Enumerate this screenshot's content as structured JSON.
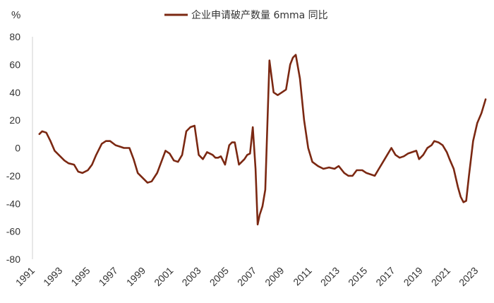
{
  "chart_data": {
    "type": "line",
    "y_unit": "%",
    "xlim": [
      1991,
      2023.9
    ],
    "ylim": [
      -80,
      80
    ],
    "y_ticks": [
      80,
      60,
      40,
      20,
      0,
      -20,
      -40,
      -60,
      -80
    ],
    "x_ticks": [
      "1991",
      "1993",
      "1995",
      "1997",
      "1999",
      "2001",
      "2003",
      "2005",
      "2007",
      "2009",
      "2011",
      "2013",
      "2015",
      "2017",
      "2019",
      "2021",
      "2023"
    ],
    "legend_position": "top",
    "grid": false,
    "series": [
      {
        "name": "企业申请破产数量 6mma 同比",
        "color": "#7b2812",
        "x": [
          1991.5,
          1991.7,
          1992.0,
          1992.3,
          1992.6,
          1993.0,
          1993.3,
          1993.6,
          1994.0,
          1994.3,
          1994.6,
          1995.0,
          1995.3,
          1995.6,
          1996.0,
          1996.3,
          1996.6,
          1997.0,
          1997.3,
          1997.6,
          1998.0,
          1998.3,
          1998.6,
          1999.0,
          1999.3,
          1999.6,
          2000.0,
          2000.3,
          2000.6,
          2000.9,
          2001.2,
          2001.5,
          2001.8,
          2002.1,
          2002.4,
          2002.7,
          2003.0,
          2003.3,
          2003.6,
          2004.0,
          2004.2,
          2004.4,
          2004.6,
          2004.9,
          2005.2,
          2005.4,
          2005.6,
          2005.9,
          2006.1,
          2006.3,
          2006.5,
          2006.7,
          2006.9,
          2007.1,
          2007.25,
          2007.4,
          2007.6,
          2007.8,
          2008.1,
          2008.4,
          2008.7,
          2009.0,
          2009.3,
          2009.6,
          2009.8,
          2010.0,
          2010.3,
          2010.6,
          2010.9,
          2011.2,
          2011.6,
          2012.0,
          2012.4,
          2012.8,
          2013.1,
          2013.5,
          2013.8,
          2014.1,
          2014.4,
          2014.8,
          2015.1,
          2015.4,
          2015.7,
          2016.0,
          2016.3,
          2016.6,
          2016.9,
          2017.2,
          2017.5,
          2017.8,
          2018.1,
          2018.4,
          2018.7,
          2018.9,
          2019.2,
          2019.5,
          2019.8,
          2020.0,
          2020.3,
          2020.6,
          2020.9,
          2021.1,
          2021.4,
          2021.7,
          2021.9,
          2022.1,
          2022.3,
          2022.5,
          2022.8,
          2023.1,
          2023.4,
          2023.7
        ],
        "values": [
          10,
          12,
          11,
          5,
          -2,
          -6,
          -9,
          -11,
          -12,
          -17,
          -18,
          -16,
          -12,
          -5,
          3,
          5,
          5,
          2,
          1,
          0,
          0,
          -8,
          -18,
          -22,
          -25,
          -24,
          -18,
          -10,
          -2,
          -4,
          -9,
          -10,
          -5,
          12,
          15,
          16,
          -5,
          -8,
          -3,
          -5,
          -7,
          -7,
          -6,
          -12,
          2,
          4,
          4,
          -12,
          -10,
          -8,
          -5,
          -4,
          15,
          -15,
          -55,
          -48,
          -42,
          -30,
          63,
          40,
          38,
          40,
          42,
          60,
          65,
          67,
          50,
          20,
          0,
          -10,
          -13,
          -15,
          -14,
          -15,
          -13,
          -18,
          -20,
          -20,
          -16,
          -16,
          -18,
          -19,
          -20,
          -15,
          -10,
          -5,
          0,
          -5,
          -7,
          -6,
          -4,
          -3,
          -2,
          -8,
          -5,
          0,
          2,
          5,
          4,
          2,
          -3,
          -8,
          -15,
          -28,
          -35,
          -39,
          -38,
          -20,
          5,
          18,
          25,
          35
        ]
      }
    ]
  }
}
